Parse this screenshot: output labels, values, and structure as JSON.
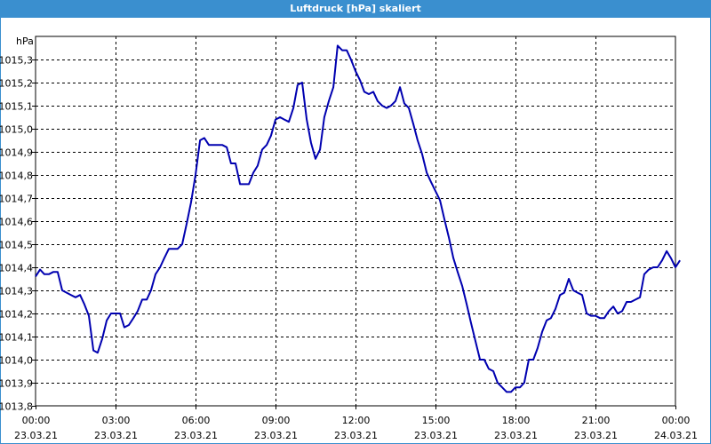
{
  "window": {
    "title": "Luftdruck [hPa] skaliert"
  },
  "chart_data": {
    "type": "line",
    "title": "Luftdruck [hPa] skaliert",
    "ylabel": "hPa",
    "xlabel": "",
    "ylim": [
      1013.8,
      1015.4
    ],
    "xlim": [
      0,
      24
    ],
    "grid": true,
    "y_ticks": [
      {
        "value": 1013.8,
        "label": "1013,8"
      },
      {
        "value": 1013.9,
        "label": "1013,9"
      },
      {
        "value": 1014.0,
        "label": "1014,0"
      },
      {
        "value": 1014.1,
        "label": "1014,1"
      },
      {
        "value": 1014.2,
        "label": "1014,2"
      },
      {
        "value": 1014.3,
        "label": "1014,3"
      },
      {
        "value": 1014.4,
        "label": "1014,4"
      },
      {
        "value": 1014.5,
        "label": "1014,5"
      },
      {
        "value": 1014.6,
        "label": "1014,6"
      },
      {
        "value": 1014.7,
        "label": "1014,7"
      },
      {
        "value": 1014.8,
        "label": "1014,8"
      },
      {
        "value": 1014.9,
        "label": "1014,9"
      },
      {
        "value": 1015.0,
        "label": "1015,0"
      },
      {
        "value": 1015.1,
        "label": "1015,1"
      },
      {
        "value": 1015.2,
        "label": "1015,2"
      },
      {
        "value": 1015.3,
        "label": "1015,3"
      }
    ],
    "x_ticks": [
      {
        "value": 0,
        "time": "00:00",
        "date": "23.03.21"
      },
      {
        "value": 3,
        "time": "03:00",
        "date": "23.03.21"
      },
      {
        "value": 6,
        "time": "06:00",
        "date": "23.03.21"
      },
      {
        "value": 9,
        "time": "09:00",
        "date": "23.03.21"
      },
      {
        "value": 12,
        "time": "12:00",
        "date": "23.03.21"
      },
      {
        "value": 15,
        "time": "15:00",
        "date": "23.03.21"
      },
      {
        "value": 18,
        "time": "18:00",
        "date": "23.03.21"
      },
      {
        "value": 21,
        "time": "21:00",
        "date": "23.03.21"
      },
      {
        "value": 24,
        "time": "00:00",
        "date": "24.03.21"
      }
    ],
    "series": [
      {
        "color": "#0000b0",
        "points": [
          [
            0.0,
            1014.36
          ],
          [
            0.17,
            1014.39
          ],
          [
            0.33,
            1014.37
          ],
          [
            0.5,
            1014.37
          ],
          [
            0.67,
            1014.38
          ],
          [
            0.83,
            1014.38
          ],
          [
            1.0,
            1014.3
          ],
          [
            1.33,
            1014.28
          ],
          [
            1.5,
            1014.27
          ],
          [
            1.67,
            1014.28
          ],
          [
            1.83,
            1014.24
          ],
          [
            2.0,
            1014.19
          ],
          [
            2.17,
            1014.04
          ],
          [
            2.33,
            1014.03
          ],
          [
            2.5,
            1014.09
          ],
          [
            2.67,
            1014.17
          ],
          [
            2.83,
            1014.2
          ],
          [
            3.0,
            1014.2
          ],
          [
            3.17,
            1014.2
          ],
          [
            3.33,
            1014.14
          ],
          [
            3.5,
            1014.15
          ],
          [
            3.67,
            1014.18
          ],
          [
            3.83,
            1014.21
          ],
          [
            4.0,
            1014.26
          ],
          [
            4.17,
            1014.26
          ],
          [
            4.33,
            1014.3
          ],
          [
            4.5,
            1014.37
          ],
          [
            4.67,
            1014.4
          ],
          [
            4.83,
            1014.44
          ],
          [
            5.0,
            1014.48
          ],
          [
            5.17,
            1014.48
          ],
          [
            5.33,
            1014.48
          ],
          [
            5.5,
            1014.5
          ],
          [
            5.67,
            1014.59
          ],
          [
            5.83,
            1014.68
          ],
          [
            6.0,
            1014.8
          ],
          [
            6.17,
            1014.95
          ],
          [
            6.33,
            1014.96
          ],
          [
            6.5,
            1014.93
          ],
          [
            6.67,
            1014.93
          ],
          [
            6.83,
            1014.93
          ],
          [
            7.0,
            1014.93
          ],
          [
            7.17,
            1014.92
          ],
          [
            7.33,
            1014.85
          ],
          [
            7.5,
            1014.85
          ],
          [
            7.67,
            1014.76
          ],
          [
            7.83,
            1014.76
          ],
          [
            8.0,
            1014.76
          ],
          [
            8.17,
            1014.81
          ],
          [
            8.33,
            1014.84
          ],
          [
            8.5,
            1014.91
          ],
          [
            8.67,
            1014.93
          ],
          [
            8.83,
            1014.97
          ],
          [
            9.0,
            1015.04
          ],
          [
            9.17,
            1015.05
          ],
          [
            9.33,
            1015.04
          ],
          [
            9.5,
            1015.03
          ],
          [
            9.67,
            1015.09
          ],
          [
            9.83,
            1015.19
          ],
          [
            10.0,
            1015.2
          ],
          [
            10.17,
            1015.04
          ],
          [
            10.33,
            1014.94
          ],
          [
            10.5,
            1014.87
          ],
          [
            10.67,
            1014.91
          ],
          [
            10.83,
            1015.05
          ],
          [
            11.0,
            1015.12
          ],
          [
            11.17,
            1015.18
          ],
          [
            11.33,
            1015.36
          ],
          [
            11.5,
            1015.34
          ],
          [
            11.67,
            1015.34
          ],
          [
            11.83,
            1015.3
          ],
          [
            12.0,
            1015.25
          ],
          [
            12.17,
            1015.21
          ],
          [
            12.33,
            1015.16
          ],
          [
            12.5,
            1015.15
          ],
          [
            12.67,
            1015.16
          ],
          [
            12.83,
            1015.12
          ],
          [
            13.0,
            1015.1
          ],
          [
            13.17,
            1015.09
          ],
          [
            13.33,
            1015.1
          ],
          [
            13.5,
            1015.12
          ],
          [
            13.67,
            1015.18
          ],
          [
            13.83,
            1015.11
          ],
          [
            14.0,
            1015.09
          ],
          [
            14.17,
            1015.02
          ],
          [
            14.33,
            1014.95
          ],
          [
            14.5,
            1014.89
          ],
          [
            14.67,
            1014.81
          ],
          [
            14.83,
            1014.77
          ],
          [
            15.0,
            1014.73
          ],
          [
            15.17,
            1014.69
          ],
          [
            15.33,
            1014.61
          ],
          [
            15.5,
            1014.53
          ],
          [
            15.67,
            1014.44
          ],
          [
            15.83,
            1014.38
          ],
          [
            16.0,
            1014.32
          ],
          [
            16.17,
            1014.24
          ],
          [
            16.33,
            1014.16
          ],
          [
            16.5,
            1014.08
          ],
          [
            16.67,
            1014.0
          ],
          [
            16.83,
            1014.0
          ],
          [
            17.0,
            1013.96
          ],
          [
            17.17,
            1013.95
          ],
          [
            17.33,
            1013.9
          ],
          [
            17.5,
            1013.88
          ],
          [
            17.67,
            1013.86
          ],
          [
            17.83,
            1013.86
          ],
          [
            18.0,
            1013.88
          ],
          [
            18.17,
            1013.88
          ],
          [
            18.33,
            1013.9
          ],
          [
            18.5,
            1014.0
          ],
          [
            18.67,
            1014.0
          ],
          [
            18.83,
            1014.05
          ],
          [
            19.0,
            1014.12
          ],
          [
            19.17,
            1014.17
          ],
          [
            19.33,
            1014.18
          ],
          [
            19.5,
            1014.22
          ],
          [
            19.67,
            1014.28
          ],
          [
            19.83,
            1014.29
          ],
          [
            20.0,
            1014.35
          ],
          [
            20.17,
            1014.3
          ],
          [
            20.33,
            1014.29
          ],
          [
            20.5,
            1014.28
          ],
          [
            20.67,
            1014.2
          ],
          [
            20.83,
            1014.19
          ],
          [
            21.0,
            1014.19
          ],
          [
            21.17,
            1014.18
          ],
          [
            21.33,
            1014.18
          ],
          [
            21.5,
            1014.21
          ],
          [
            21.67,
            1014.23
          ],
          [
            21.83,
            1014.2
          ],
          [
            22.0,
            1014.21
          ],
          [
            22.17,
            1014.25
          ],
          [
            22.33,
            1014.25
          ],
          [
            22.5,
            1014.26
          ],
          [
            22.67,
            1014.27
          ],
          [
            22.83,
            1014.37
          ],
          [
            23.0,
            1014.39
          ],
          [
            23.17,
            1014.4
          ],
          [
            23.33,
            1014.4
          ],
          [
            23.5,
            1014.43
          ],
          [
            23.67,
            1014.47
          ],
          [
            23.83,
            1014.44
          ],
          [
            24.0,
            1014.4
          ],
          [
            24.17,
            1014.43
          ]
        ]
      }
    ]
  }
}
